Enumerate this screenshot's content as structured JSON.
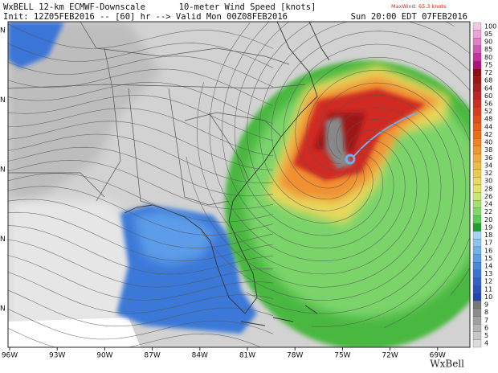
{
  "header": {
    "left_title": "WxBELL  12-km  ECMWF-Downscale",
    "center_title": "10-meter Wind Speed [knots]",
    "init": "Init: 12Z05FEB2016 -- [60] hr --> Valid Mon 00Z08FEB2016",
    "local_time": "Sun 20:00 EDT 07FEB2016",
    "max_wind": "MaxWind: 65.3 knots"
  },
  "colorbar": {
    "labels": [
      100,
      95,
      90,
      85,
      80,
      75,
      72,
      68,
      64,
      60,
      56,
      52,
      48,
      44,
      42,
      40,
      38,
      36,
      34,
      32,
      30,
      28,
      26,
      24,
      22,
      20,
      19,
      18,
      17,
      16,
      15,
      14,
      13,
      12,
      11,
      10,
      9,
      8,
      7,
      6,
      5,
      4
    ],
    "colors": [
      "#f4c6e4",
      "#eea2d6",
      "#e47cc6",
      "#d656b4",
      "#c8309e",
      "#b4107e",
      "#8e0c10",
      "#a01414",
      "#b01c1c",
      "#c02424",
      "#d02c20",
      "#dc3c1c",
      "#e44c18",
      "#ec5c14",
      "#f06c14",
      "#f48020",
      "#f49630",
      "#f4aa40",
      "#f0bc48",
      "#ecca50",
      "#e8d85c",
      "#e0e468",
      "#c8e870",
      "#a4e070",
      "#80d868",
      "#5ccc58",
      "#1e9e2c",
      "#a8d4f4",
      "#8cc4f0",
      "#70b0ec",
      "#5c9ce8",
      "#4888e0",
      "#3a74d8",
      "#3062cc",
      "#2852c0",
      "#2044b0",
      "#787878",
      "#8c8c8c",
      "#a0a0a0",
      "#b4b4b4",
      "#c8c8c8",
      "#dcdcdc"
    ]
  },
  "longitude_labels": [
    "96W",
    "93W",
    "90W",
    "87W",
    "84W",
    "81W",
    "78W",
    "75W",
    "72W",
    "69W"
  ],
  "latitude_labels": [
    "N",
    "N",
    "N",
    "N",
    "N"
  ],
  "logo": "WxBell"
}
